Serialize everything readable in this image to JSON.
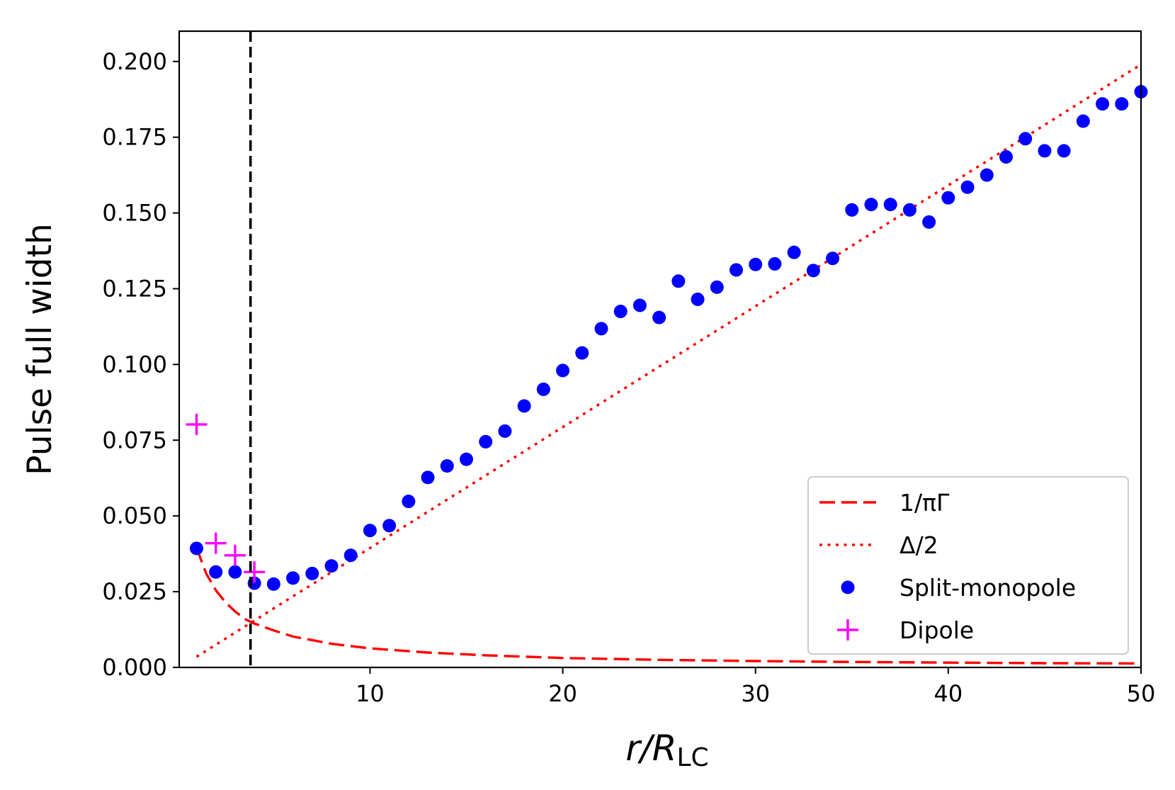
{
  "chart_data": {
    "type": "scatter",
    "title": "",
    "xlabel": {
      "main": "r/R",
      "sub": "LC"
    },
    "ylabel": "Pulse full width",
    "xlim": [
      0.1,
      50
    ],
    "ylim": [
      0.0,
      0.21
    ],
    "xticks": [
      10,
      20,
      30,
      40,
      50
    ],
    "xtick_labels": [
      "10",
      "20",
      "30",
      "40",
      "50"
    ],
    "yticks": [
      0.0,
      0.025,
      0.05,
      0.075,
      0.1,
      0.125,
      0.15,
      0.175,
      0.2
    ],
    "ytick_labels": [
      "0.000",
      "0.025",
      "0.050",
      "0.075",
      "0.100",
      "0.125",
      "0.150",
      "0.175",
      "0.200"
    ],
    "grid": false,
    "legend_position": "lower-right",
    "vline": {
      "x": 3.8,
      "style": "dashed",
      "color": "#000000"
    },
    "series": [
      {
        "name": "1/πΓ",
        "kind": "line",
        "style": "dashed",
        "color": "#ff0000",
        "x": [
          1,
          1.5,
          2,
          2.5,
          3,
          3.5,
          4,
          5,
          6,
          8,
          10,
          13,
          16,
          20,
          25,
          30,
          35,
          40,
          45,
          50
        ],
        "y": [
          0.0395,
          0.031,
          0.0255,
          0.0215,
          0.0185,
          0.016,
          0.0145,
          0.0122,
          0.0102,
          0.0078,
          0.0063,
          0.0049,
          0.004,
          0.0031,
          0.0025,
          0.0021,
          0.0018,
          0.0016,
          0.0014,
          0.0013
        ]
      },
      {
        "name": "Δ/2",
        "kind": "line",
        "style": "dotted",
        "color": "#ff0000",
        "x": [
          1,
          50
        ],
        "y": [
          0.0035,
          0.199
        ]
      },
      {
        "name": "Split-monopole",
        "kind": "scatter",
        "marker": "circle",
        "color": "#0000ff",
        "x": [
          1,
          2,
          3,
          4,
          5,
          6,
          7,
          8,
          9,
          10,
          11,
          12,
          13,
          14,
          15,
          16,
          17,
          18,
          19,
          20,
          21,
          22,
          23,
          24,
          25,
          26,
          27,
          28,
          29,
          30,
          31,
          32,
          33,
          34,
          35,
          36,
          37,
          38,
          39,
          40,
          41,
          42,
          43,
          44,
          45,
          46,
          47,
          48,
          49,
          50
        ],
        "y": [
          0.0393,
          0.0315,
          0.0315,
          0.0278,
          0.0275,
          0.0295,
          0.031,
          0.0335,
          0.037,
          0.0452,
          0.0468,
          0.0548,
          0.0627,
          0.0665,
          0.0687,
          0.0745,
          0.078,
          0.0863,
          0.0918,
          0.098,
          0.1038,
          0.1118,
          0.1175,
          0.1195,
          0.1155,
          0.1275,
          0.1215,
          0.1255,
          0.1312,
          0.133,
          0.1332,
          0.137,
          0.131,
          0.135,
          0.151,
          0.1528,
          0.1528,
          0.151,
          0.147,
          0.155,
          0.1585,
          0.1625,
          0.1685,
          0.1745,
          0.1705,
          0.1705,
          0.1803,
          0.186,
          0.186,
          0.19
        ]
      },
      {
        "name": "Dipole",
        "kind": "scatter",
        "marker": "plus",
        "color": "#ff00ff",
        "x": [
          1,
          2,
          3,
          4
        ],
        "y": [
          0.0802,
          0.041,
          0.037,
          0.0315
        ]
      }
    ]
  }
}
